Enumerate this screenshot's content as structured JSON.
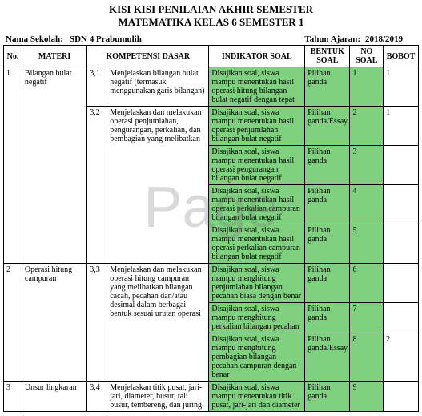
{
  "colors": {
    "highlight": "#7fd07f",
    "section_border": "#0030d0",
    "text": "#000000",
    "background": "#ffffff"
  },
  "titles": {
    "line1": "KISI KISI PENILAIAN AKHIR SEMESTER",
    "line2": "MATEMATIKA KELAS 6 SEMESTER 1"
  },
  "meta": {
    "school_label": "Nama Sekolah:",
    "school_value": "SDN 4 Prabumulih",
    "year_label": "Tahun Ajaran:",
    "year_value": "2018/2019"
  },
  "watermark": "Page",
  "headers": {
    "no": "No.",
    "materi": "MATERI",
    "kd": "KOMPETENSI DASAR",
    "indikator": "INDIKATOR SOAL",
    "bentuk": "BENTUK SOAL",
    "nosoal": "NO SOAL",
    "bobot": "BOBOT"
  },
  "rows": [
    {
      "no": "1",
      "materi": "Bilangan bulat negatif",
      "kd_no": "3,1",
      "kd": "Menjelaskan bilangan bulat negatif (termasuk menggunakan garis bilangan)",
      "items": [
        {
          "ind": "Disajikan soal, siswa mampu menentukan hasil operasi hitung bilangan bulat negatif dengan tepat",
          "bentuk": "Pilihan ganda",
          "nosoal": "1",
          "bobot": "1"
        }
      ]
    },
    {
      "kd_no": "3,2",
      "kd": "Menjelaskan dan melakukan operasi penjumlahan, pengurangan, perkalian, dan pembagian yang melibatkan",
      "items": [
        {
          "ind": "Disajikan soal, siswa mampu menentukan hasil operasi penjumlahan bilangan bulat negatif",
          "bentuk": "Pilihan ganda/Essay",
          "nosoal": "2",
          "bobot": "1"
        },
        {
          "ind": "Disajikan soal, siswa mampu menentukan hasil operasi pengurangan bilangan bulat negatif",
          "bentuk": "Pilihan ganda",
          "nosoal": "3",
          "bobot": ""
        },
        {
          "ind": "Disajikan soal, siswa mampu menentukan hasil operasi perkalian campuran bilangan bulat negatif",
          "bentuk": "Pilihan ganda",
          "nosoal": "4",
          "bobot": ""
        },
        {
          "ind": "Disajikan soal, siswa mampu menentukan hasil operasi perkalian campuran bilangan bulat negatif",
          "bentuk": "Pilihan ganda",
          "nosoal": "5",
          "bobot": ""
        }
      ]
    },
    {
      "no": "2",
      "materi": "Operasi hitung campuran",
      "kd_no": "3,3",
      "kd": "Menjelaskan dan melakukan operasi hitung campuran yang melibatkan bilangan cacah, pecahan dan/atau desimal dalam berbagai bentuk sesuai urutan operasi",
      "section": true,
      "items": [
        {
          "ind": "Disajikan soal, siswa mampu menghitung penjumlahan bilangan pecahan biasa dengan benar",
          "bentuk": "Pilihan ganda",
          "nosoal": "6",
          "bobot": ""
        },
        {
          "ind": "Disajikan soal, siswa mampu menghitung perkalian bilangan pecahan",
          "bentuk": "Pilihan ganda",
          "nosoal": "7",
          "bobot": ""
        },
        {
          "ind": "Disajikan soal, siswa mampu  menghitung pembagian bilangan pecahan campuran dengan benar",
          "bentuk": "Pilihan ganda/Essay",
          "nosoal": "8",
          "bobot": "2"
        }
      ]
    },
    {
      "no": "3",
      "materi": "Unsur lingkaran",
      "kd_no": "3,4",
      "kd": "Menjelaskan titik pusat,  jari-jari, diameter, busur, tali busur, tembereng, dan juring",
      "section": true,
      "items": [
        {
          "ind": "Disajikan soal, siswa mampu menentukan titik pusat, jari-jari dan diameter",
          "bentuk": "Pilihan ganda",
          "nosoal": "9",
          "bobot": ""
        }
      ]
    }
  ]
}
